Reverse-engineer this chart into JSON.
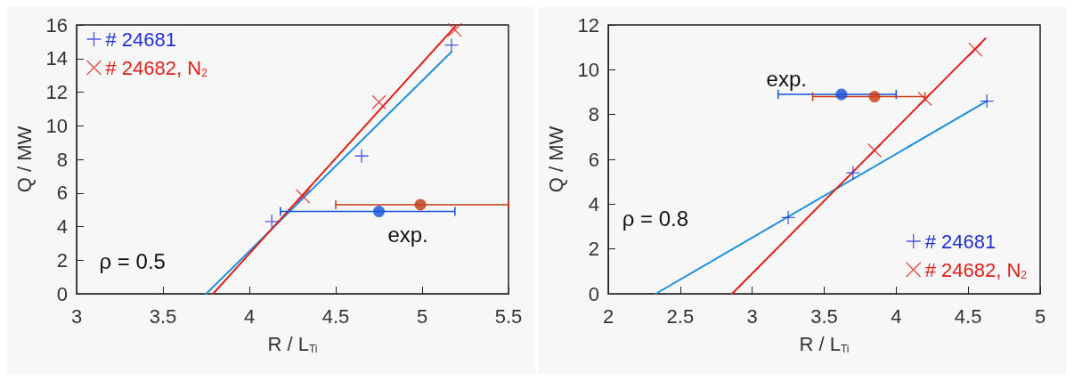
{
  "chart_data": [
    {
      "type": "scatter",
      "xlabel": "R / L$_{Ti}$",
      "ylabel": "Q / MW",
      "xlim": [
        3,
        5.5
      ],
      "xticks": [
        3,
        3.5,
        4,
        4.5,
        5,
        5.5
      ],
      "ylim": [
        0,
        16
      ],
      "yticks": [
        0,
        2,
        4,
        6,
        8,
        10,
        12,
        14,
        16
      ],
      "grid": false,
      "legend": "top left",
      "annotations": [
        "ρ = 0.5",
        "exp."
      ],
      "series": [
        {
          "name": "# 24681",
          "marker": "plus",
          "color": "#1f2fd8",
          "x": [
            4.13,
            4.65,
            5.17
          ],
          "values": [
            4.3,
            8.2,
            14.8
          ]
        },
        {
          "name": "# 24682, N$_{2}$",
          "marker": "cross",
          "color": "#e0201a",
          "x": [
            4.31,
            4.75,
            5.19
          ],
          "values": [
            5.8,
            11.4,
            15.7
          ]
        },
        {
          "type": "line",
          "marker": "none",
          "color": "#1e90e0",
          "x": [
            3.75,
            5.17
          ],
          "values": [
            0,
            14.4
          ]
        },
        {
          "type": "line",
          "marker": "none",
          "color": "#e0201a",
          "x": [
            3.79,
            5.2
          ],
          "values": [
            0,
            16
          ]
        },
        {
          "marker": "circle",
          "color": "#1050d8",
          "x": [
            4.75
          ],
          "values": [
            4.9
          ],
          "xerrors": [
            [
              4.18,
              5.19
            ]
          ]
        },
        {
          "marker": "circle",
          "color": "#c03a10",
          "x": [
            4.99
          ],
          "values": [
            5.3
          ],
          "xerrors": [
            [
              4.5,
              5.5
            ]
          ]
        }
      ]
    },
    {
      "type": "scatter",
      "xlabel": "R / L$_{Ti}$",
      "ylabel": "Q / MW",
      "xlim": [
        2,
        5
      ],
      "xticks": [
        2,
        2.5,
        3,
        3.5,
        4,
        4.5,
        5
      ],
      "ylim": [
        0,
        12
      ],
      "yticks": [
        0,
        2,
        4,
        6,
        8,
        10,
        12
      ],
      "grid": false,
      "legend": "bottom right",
      "annotations": [
        "ρ = 0.8",
        "exp."
      ],
      "series": [
        {
          "name": "# 24681",
          "marker": "plus",
          "color": "#1f2fd8",
          "x": [
            3.25,
            3.7,
            4.63
          ],
          "values": [
            3.4,
            5.4,
            8.6
          ]
        },
        {
          "name": "# 24682, N$_{2}$",
          "marker": "cross",
          "color": "#e0201a",
          "x": [
            3.85,
            4.2,
            4.55
          ],
          "values": [
            6.4,
            8.7,
            10.9
          ]
        },
        {
          "type": "line",
          "marker": "none",
          "color": "#1e90e0",
          "x": [
            2.33,
            4.63
          ],
          "values": [
            0,
            8.6
          ]
        },
        {
          "type": "line",
          "marker": "none",
          "color": "#e0201a",
          "x": [
            2.86,
            4.62
          ],
          "values": [
            0,
            11.4
          ]
        },
        {
          "marker": "circle",
          "color": "#1050d8",
          "x": [
            3.62
          ],
          "values": [
            8.9
          ],
          "xerrors": [
            [
              3.18,
              4.0
            ]
          ]
        },
        {
          "marker": "circle",
          "color": "#d03a10",
          "x": [
            3.85
          ],
          "values": [
            8.8
          ],
          "xerrors": [
            [
              3.42,
              4.2
            ]
          ]
        }
      ]
    }
  ]
}
